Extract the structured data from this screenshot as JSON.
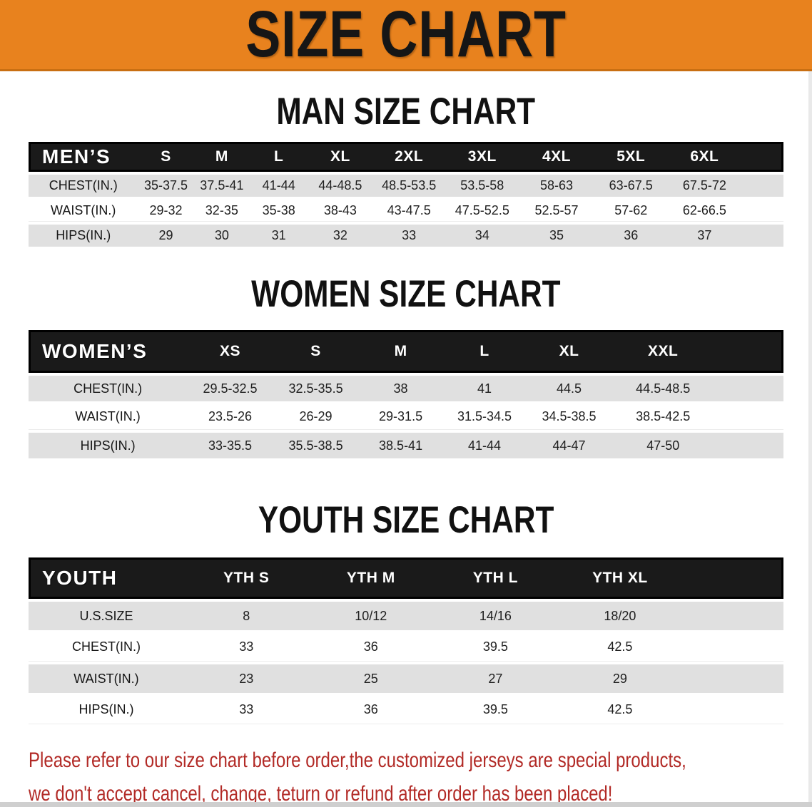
{
  "banner": {
    "title": "SIZE CHART",
    "bg_color": "#E8821E"
  },
  "sections": [
    {
      "heading": "MAN SIZE CHART",
      "table": {
        "label": "MEN’S",
        "columns": [
          "S",
          "M",
          "L",
          "XL",
          "2XL",
          "3XL",
          "4XL",
          "5XL",
          "6XL"
        ],
        "rows": [
          {
            "label": "CHEST(IN.)",
            "values": [
              "35-37.5",
              "37.5-41",
              "41-44",
              "44-48.5",
              "48.5-53.5",
              "53.5-58",
              "58-63",
              "63-67.5",
              "67.5-72"
            ]
          },
          {
            "label": "WAIST(IN.)",
            "values": [
              "29-32",
              "32-35",
              "35-38",
              "38-43",
              "43-47.5",
              "47.5-52.5",
              "52.5-57",
              "57-62",
              "62-66.5"
            ]
          },
          {
            "label": "HIPS(IN.)",
            "values": [
              "29",
              "30",
              "31",
              "32",
              "33",
              "34",
              "35",
              "36",
              "37"
            ]
          }
        ]
      }
    },
    {
      "heading": "WOMEN SIZE CHART",
      "table": {
        "label": "WOMEN’S",
        "columns": [
          "XS",
          "S",
          "M",
          "L",
          "XL",
          "XXL"
        ],
        "rows": [
          {
            "label": "CHEST(IN.)",
            "values": [
              "29.5-32.5",
              "32.5-35.5",
              "38",
              "41",
              "44.5",
              "44.5-48.5"
            ]
          },
          {
            "label": "WAIST(IN.)",
            "values": [
              "23.5-26",
              "26-29",
              "29-31.5",
              "31.5-34.5",
              "34.5-38.5",
              "38.5-42.5"
            ]
          },
          {
            "label": "HIPS(IN.)",
            "values": [
              "33-35.5",
              "35.5-38.5",
              "38.5-41",
              "41-44",
              "44-47",
              "47-50"
            ]
          }
        ]
      }
    },
    {
      "heading": "YOUTH SIZE CHART",
      "table": {
        "label": "YOUTH",
        "columns": [
          "YTH S",
          "YTH M",
          "YTH L",
          "YTH XL"
        ],
        "rows": [
          {
            "label": "U.S.SIZE",
            "values": [
              "8",
              "10/12",
              "14/16",
              "18/20"
            ]
          },
          {
            "label": "CHEST(IN.)",
            "values": [
              "33",
              "36",
              "39.5",
              "42.5"
            ]
          },
          {
            "label": "WAIST(IN.)",
            "values": [
              "23",
              "25",
              "27",
              "29"
            ]
          },
          {
            "label": "HIPS(IN.)",
            "values": [
              "33",
              "36",
              "39.5",
              "42.5"
            ]
          }
        ]
      }
    }
  ],
  "footnote": {
    "line1": "Please refer to our size chart before order,the customized jerseys are special products,",
    "line2": "we don't accept cancel, change, teturn or refund after order has been placed!",
    "color": "#B22A26"
  }
}
